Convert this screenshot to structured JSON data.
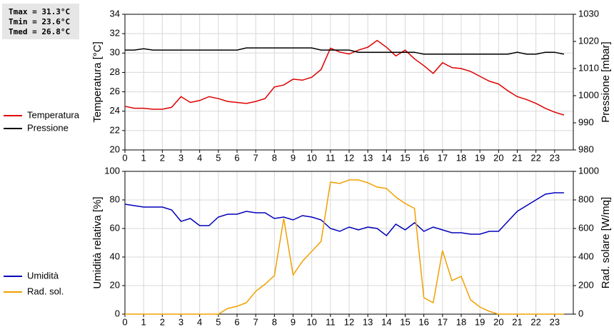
{
  "chart_data": [
    {
      "type": "line",
      "ylabel": "Temperatura [°C]",
      "y2label": "Pressione [mbar]",
      "legend": "left",
      "grid": true,
      "annotations": [
        "Tmax = 31.3°C",
        "Tmin = 23.6°C",
        "Tmed = 26.8°C"
      ],
      "xlim": [
        0,
        24
      ],
      "xticks": [
        0,
        1,
        2,
        3,
        4,
        5,
        6,
        7,
        8,
        9,
        10,
        11,
        12,
        13,
        14,
        15,
        16,
        17,
        18,
        19,
        20,
        21,
        22,
        23
      ],
      "ylim": [
        20,
        34
      ],
      "yticks": [
        20,
        22,
        24,
        26,
        28,
        30,
        32,
        34
      ],
      "y2lim": [
        980,
        1030
      ],
      "y2ticks": [
        980,
        990,
        1000,
        1010,
        1020,
        1030
      ],
      "x": [
        0,
        0.5,
        1,
        1.5,
        2,
        2.5,
        3,
        3.5,
        4,
        4.5,
        5,
        5.5,
        6,
        6.5,
        7,
        7.5,
        8,
        8.5,
        9,
        9.5,
        10,
        10.5,
        11,
        11.5,
        12,
        12.5,
        13,
        13.5,
        14,
        14.5,
        15,
        15.5,
        16,
        16.5,
        17,
        17.5,
        18,
        18.5,
        19,
        19.5,
        20,
        20.5,
        21,
        21.5,
        22,
        22.5,
        23,
        23.5
      ],
      "series": [
        {
          "name": "Temperatura",
          "color": "#dd0000",
          "values": [
            24.5,
            24.3,
            24.3,
            24.2,
            24.2,
            24.4,
            25.5,
            24.9,
            25.1,
            25.5,
            25.3,
            25.0,
            24.9,
            24.8,
            25.0,
            25.3,
            26.5,
            26.7,
            27.3,
            27.2,
            27.5,
            28.3,
            30.5,
            30.1,
            29.9,
            30.3,
            30.6,
            31.3,
            30.6,
            29.7,
            30.3,
            29.4,
            28.7,
            27.9,
            29.0,
            28.5,
            28.4,
            28.1,
            27.6,
            27.1,
            26.8,
            26.1,
            25.5,
            25.2,
            24.8,
            24.3,
            23.9,
            23.6
          ]
        },
        {
          "name": "Pressione",
          "color": "#000000",
          "axis": "y2",
          "values": [
            1016.8,
            1016.8,
            1017.3,
            1016.8,
            1016.8,
            1016.8,
            1016.8,
            1016.8,
            1016.8,
            1016.8,
            1016.8,
            1016.8,
            1016.8,
            1017.6,
            1017.6,
            1017.6,
            1017.6,
            1017.6,
            1017.6,
            1017.6,
            1017.6,
            1016.8,
            1016.8,
            1016.8,
            1016.8,
            1016,
            1016,
            1016,
            1016,
            1016,
            1016,
            1016,
            1015.3,
            1015.3,
            1015.3,
            1015.3,
            1015.3,
            1015.3,
            1015.3,
            1015.3,
            1015.3,
            1015.3,
            1016,
            1015.3,
            1015.3,
            1016,
            1016,
            1015.3
          ]
        }
      ]
    },
    {
      "type": "line",
      "ylabel": "Umidità relativa [%]",
      "y2label": "Rad. solare [W/mq]",
      "legend": "left",
      "grid": true,
      "xlim": [
        0,
        24
      ],
      "xticks": [
        0,
        1,
        2,
        3,
        4,
        5,
        6,
        7,
        8,
        9,
        10,
        11,
        12,
        13,
        14,
        15,
        16,
        17,
        18,
        19,
        20,
        21,
        22,
        23
      ],
      "ylim": [
        0,
        100
      ],
      "yticks": [
        0,
        20,
        40,
        60,
        80,
        100
      ],
      "y2lim": [
        0,
        1000
      ],
      "y2ticks": [
        0,
        200,
        400,
        600,
        800,
        1000
      ],
      "x": [
        0,
        0.5,
        1,
        1.5,
        2,
        2.5,
        3,
        3.5,
        4,
        4.5,
        5,
        5.5,
        6,
        6.5,
        7,
        7.5,
        8,
        8.5,
        9,
        9.5,
        10,
        10.5,
        11,
        11.5,
        12,
        12.5,
        13,
        13.5,
        14,
        14.5,
        15,
        15.5,
        16,
        16.5,
        17,
        17.5,
        18,
        18.5,
        19,
        19.5,
        20,
        20.5,
        21,
        21.5,
        22,
        22.5,
        23,
        23.5
      ],
      "series": [
        {
          "name": "Umidità",
          "color": "#0000bb",
          "values": [
            77,
            76,
            75,
            75,
            75,
            73,
            65,
            67,
            62,
            62,
            68,
            70,
            70,
            72,
            71,
            71,
            67,
            68,
            66,
            69,
            68,
            66,
            60,
            58,
            61,
            59,
            61,
            60,
            55,
            63,
            59,
            64,
            58,
            61,
            59,
            57,
            57,
            56,
            56,
            58,
            58,
            65,
            72,
            76,
            80,
            84,
            85,
            85
          ]
        },
        {
          "name": "Rad. sol.",
          "color": "#f0a000",
          "axis": "y2",
          "values": [
            0,
            0,
            0,
            0,
            0,
            0,
            0,
            0,
            0,
            0,
            0,
            40,
            55,
            80,
            160,
            210,
            270,
            670,
            275,
            370,
            440,
            510,
            925,
            915,
            940,
            940,
            920,
            890,
            880,
            820,
            775,
            740,
            115,
            80,
            445,
            235,
            265,
            100,
            50,
            20,
            0,
            0,
            0,
            0,
            0,
            0,
            0,
            0
          ]
        }
      ]
    }
  ]
}
